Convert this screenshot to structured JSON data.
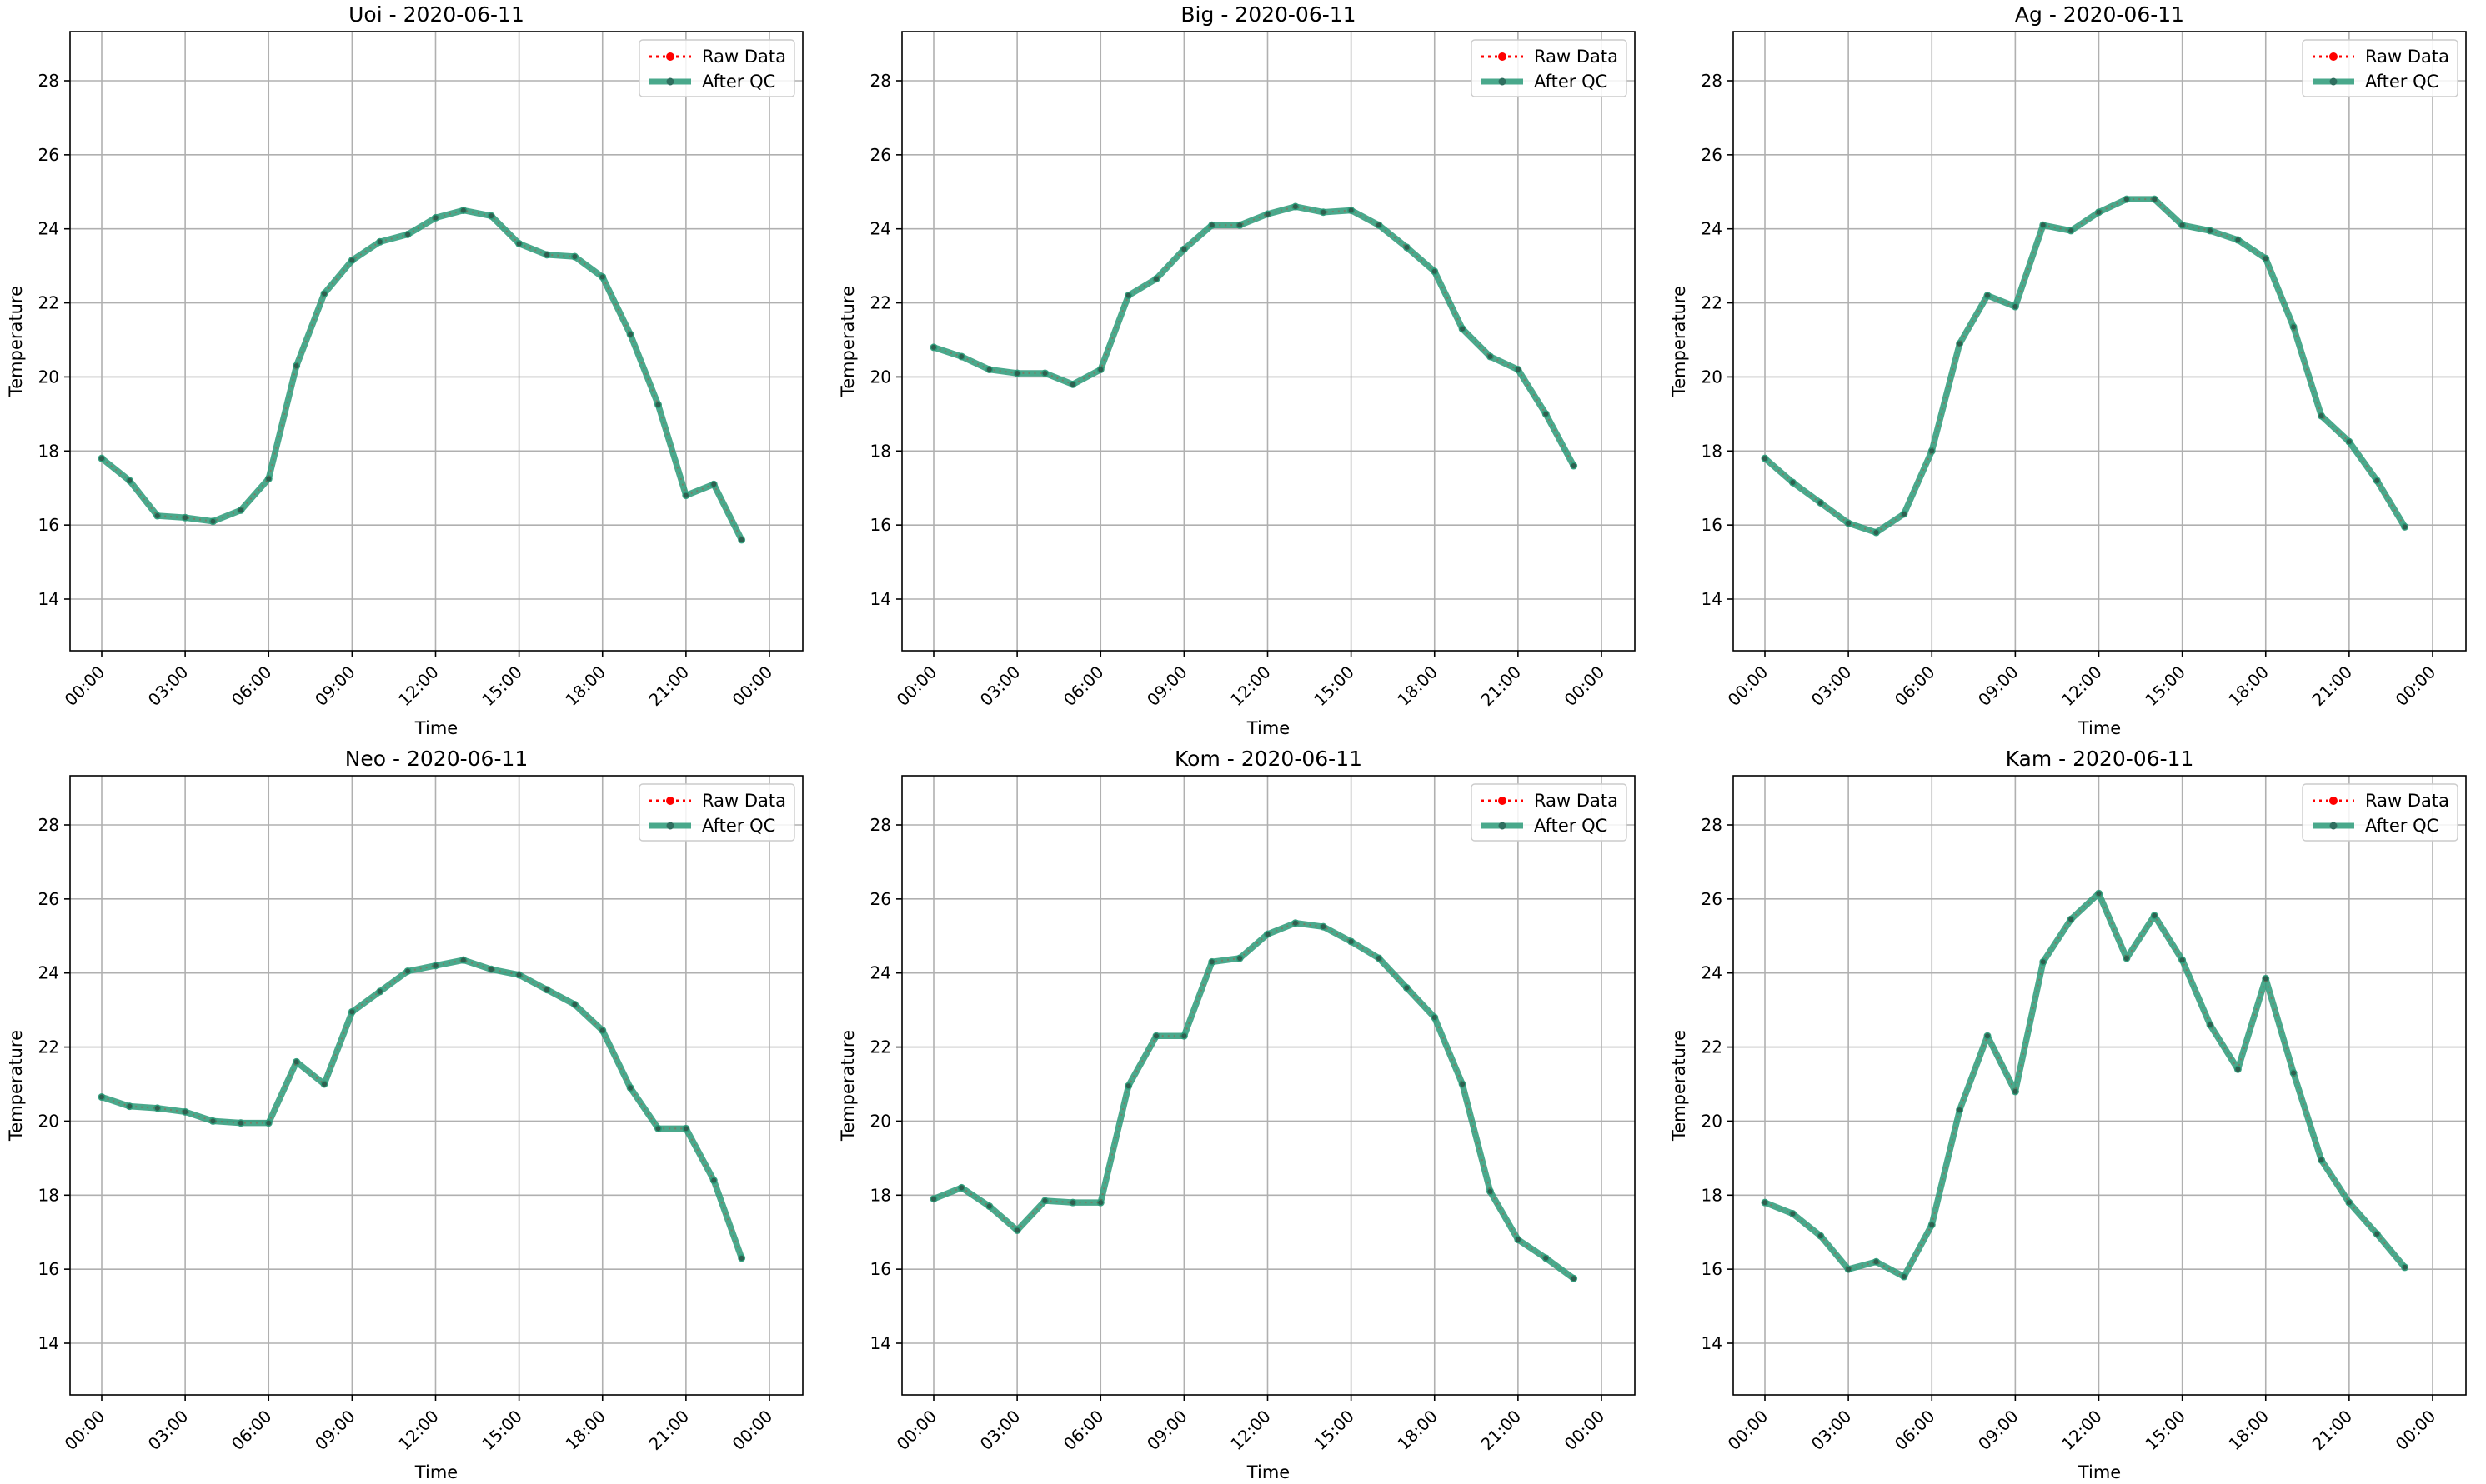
{
  "chart_data": [
    {
      "type": "line",
      "title": "Uoi - 2020-06-11",
      "xlabel": "Time",
      "ylabel": "Temperature",
      "xticks": [
        "00:00",
        "03:00",
        "06:00",
        "09:00",
        "12:00",
        "15:00",
        "18:00",
        "21:00",
        "00:00"
      ],
      "yticks": [
        14,
        16,
        18,
        20,
        22,
        24,
        26,
        28
      ],
      "ylim": [
        12.6,
        29.2
      ],
      "grid": true,
      "legend_position": "top-right",
      "series": [
        {
          "name": "Raw Data",
          "color": "#ff0000",
          "values": [
            17.8,
            17.2,
            16.25,
            16.2,
            16.1,
            16.4,
            17.25,
            20.3,
            22.25,
            23.15,
            23.65,
            23.85,
            24.3,
            24.5,
            24.35,
            23.6,
            23.3,
            23.25,
            22.7,
            21.15,
            19.25,
            16.8,
            17.1,
            15.6
          ]
        },
        {
          "name": "After QC",
          "color": "#2a9a78",
          "values": [
            17.8,
            17.2,
            16.25,
            16.2,
            16.1,
            16.4,
            17.25,
            20.3,
            22.25,
            23.15,
            23.65,
            23.85,
            24.3,
            24.5,
            24.35,
            23.6,
            23.3,
            23.25,
            22.7,
            21.15,
            19.25,
            16.8,
            17.1,
            15.6
          ]
        }
      ]
    },
    {
      "type": "line",
      "title": "Big - 2020-06-11",
      "xlabel": "Time",
      "ylabel": "Temperature",
      "xticks": [
        "00:00",
        "03:00",
        "06:00",
        "09:00",
        "12:00",
        "15:00",
        "18:00",
        "21:00",
        "00:00"
      ],
      "yticks": [
        14,
        16,
        18,
        20,
        22,
        24,
        26,
        28
      ],
      "ylim": [
        12.6,
        29.2
      ],
      "grid": true,
      "legend_position": "top-right",
      "series": [
        {
          "name": "Raw Data",
          "color": "#ff0000",
          "values": [
            20.8,
            20.55,
            20.2,
            20.1,
            20.1,
            19.8,
            20.2,
            22.2,
            22.65,
            23.45,
            24.1,
            24.1,
            24.4,
            24.6,
            24.45,
            24.5,
            24.1,
            23.5,
            22.85,
            21.3,
            20.55,
            20.2,
            19.0,
            17.6
          ]
        },
        {
          "name": "After QC",
          "color": "#2a9a78",
          "values": [
            20.8,
            20.55,
            20.2,
            20.1,
            20.1,
            19.8,
            20.2,
            22.2,
            22.65,
            23.45,
            24.1,
            24.1,
            24.4,
            24.6,
            24.45,
            24.5,
            24.1,
            23.5,
            22.85,
            21.3,
            20.55,
            20.2,
            19.0,
            17.6
          ]
        }
      ]
    },
    {
      "type": "line",
      "title": "Ag - 2020-06-11",
      "xlabel": "Time",
      "ylabel": "Temperature",
      "xticks": [
        "00:00",
        "03:00",
        "06:00",
        "09:00",
        "12:00",
        "15:00",
        "18:00",
        "21:00",
        "00:00"
      ],
      "yticks": [
        14,
        16,
        18,
        20,
        22,
        24,
        26,
        28
      ],
      "ylim": [
        12.6,
        29.2
      ],
      "grid": true,
      "legend_position": "top-right",
      "series": [
        {
          "name": "Raw Data",
          "color": "#ff0000",
          "values": [
            17.8,
            17.15,
            16.6,
            16.05,
            15.8,
            16.3,
            18.0,
            20.9,
            22.2,
            21.9,
            24.1,
            23.95,
            24.45,
            24.8,
            24.8,
            24.1,
            23.95,
            23.7,
            23.2,
            21.35,
            18.95,
            18.25,
            17.2,
            15.95
          ]
        },
        {
          "name": "After QC",
          "color": "#2a9a78",
          "values": [
            17.8,
            17.15,
            16.6,
            16.05,
            15.8,
            16.3,
            18.0,
            20.9,
            22.2,
            21.9,
            24.1,
            23.95,
            24.45,
            24.8,
            24.8,
            24.1,
            23.95,
            23.7,
            23.2,
            21.35,
            18.95,
            18.25,
            17.2,
            15.95
          ]
        }
      ]
    },
    {
      "type": "line",
      "title": "Neo - 2020-06-11",
      "xlabel": "Time",
      "ylabel": "Temperature",
      "xticks": [
        "00:00",
        "03:00",
        "06:00",
        "09:00",
        "12:00",
        "15:00",
        "18:00",
        "21:00",
        "00:00"
      ],
      "yticks": [
        14,
        16,
        18,
        20,
        22,
        24,
        26,
        28
      ],
      "ylim": [
        12.6,
        29.2
      ],
      "grid": true,
      "legend_position": "top-right",
      "series": [
        {
          "name": "Raw Data",
          "color": "#ff0000",
          "values": [
            20.65,
            20.4,
            20.35,
            20.25,
            20.0,
            19.95,
            19.95,
            21.6,
            21.0,
            22.95,
            23.5,
            24.05,
            24.2,
            24.35,
            24.1,
            23.95,
            23.55,
            23.15,
            22.45,
            20.9,
            19.8,
            19.8,
            18.4,
            16.3
          ]
        },
        {
          "name": "After QC",
          "color": "#2a9a78",
          "values": [
            20.65,
            20.4,
            20.35,
            20.25,
            20.0,
            19.95,
            19.95,
            21.6,
            21.0,
            22.95,
            23.5,
            24.05,
            24.2,
            24.35,
            24.1,
            23.95,
            23.55,
            23.15,
            22.45,
            20.9,
            19.8,
            19.8,
            18.4,
            16.3
          ]
        }
      ]
    },
    {
      "type": "line",
      "title": "Kom - 2020-06-11",
      "xlabel": "Time",
      "ylabel": "Temperature",
      "xticks": [
        "00:00",
        "03:00",
        "06:00",
        "09:00",
        "12:00",
        "15:00",
        "18:00",
        "21:00",
        "00:00"
      ],
      "yticks": [
        14,
        16,
        18,
        20,
        22,
        24,
        26,
        28
      ],
      "ylim": [
        12.6,
        29.2
      ],
      "grid": true,
      "legend_position": "top-right",
      "series": [
        {
          "name": "Raw Data",
          "color": "#ff0000",
          "values": [
            17.9,
            18.2,
            17.7,
            17.05,
            17.85,
            17.8,
            17.8,
            20.95,
            22.3,
            22.3,
            24.3,
            24.4,
            25.05,
            25.35,
            25.25,
            24.85,
            24.4,
            23.6,
            22.8,
            21.0,
            18.1,
            16.8,
            16.3,
            15.75
          ]
        },
        {
          "name": "After QC",
          "color": "#2a9a78",
          "values": [
            17.9,
            18.2,
            17.7,
            17.05,
            17.85,
            17.8,
            17.8,
            20.95,
            22.3,
            22.3,
            24.3,
            24.4,
            25.05,
            25.35,
            25.25,
            24.85,
            24.4,
            23.6,
            22.8,
            21.0,
            18.1,
            16.8,
            16.3,
            15.75
          ]
        }
      ]
    },
    {
      "type": "line",
      "title": "Kam - 2020-06-11",
      "xlabel": "Time",
      "ylabel": "Temperature",
      "xticks": [
        "00:00",
        "03:00",
        "06:00",
        "09:00",
        "12:00",
        "15:00",
        "18:00",
        "21:00",
        "00:00"
      ],
      "yticks": [
        14,
        16,
        18,
        20,
        22,
        24,
        26,
        28
      ],
      "ylim": [
        12.6,
        29.2
      ],
      "grid": true,
      "legend_position": "top-right",
      "series": [
        {
          "name": "Raw Data",
          "color": "#ff0000",
          "values": [
            17.8,
            17.5,
            16.9,
            16.0,
            16.2,
            15.8,
            17.2,
            20.3,
            22.3,
            20.8,
            24.3,
            25.45,
            26.15,
            24.4,
            25.55,
            24.35,
            22.6,
            21.4,
            23.85,
            21.3,
            18.95,
            17.8,
            16.95,
            16.05
          ]
        },
        {
          "name": "After QC",
          "color": "#2a9a78",
          "values": [
            17.8,
            17.5,
            16.9,
            16.0,
            16.2,
            15.8,
            17.2,
            20.3,
            22.3,
            20.8,
            24.3,
            25.45,
            26.15,
            24.4,
            25.55,
            24.35,
            22.6,
            21.4,
            23.85,
            21.3,
            18.95,
            17.8,
            16.95,
            16.05
          ]
        }
      ]
    }
  ]
}
